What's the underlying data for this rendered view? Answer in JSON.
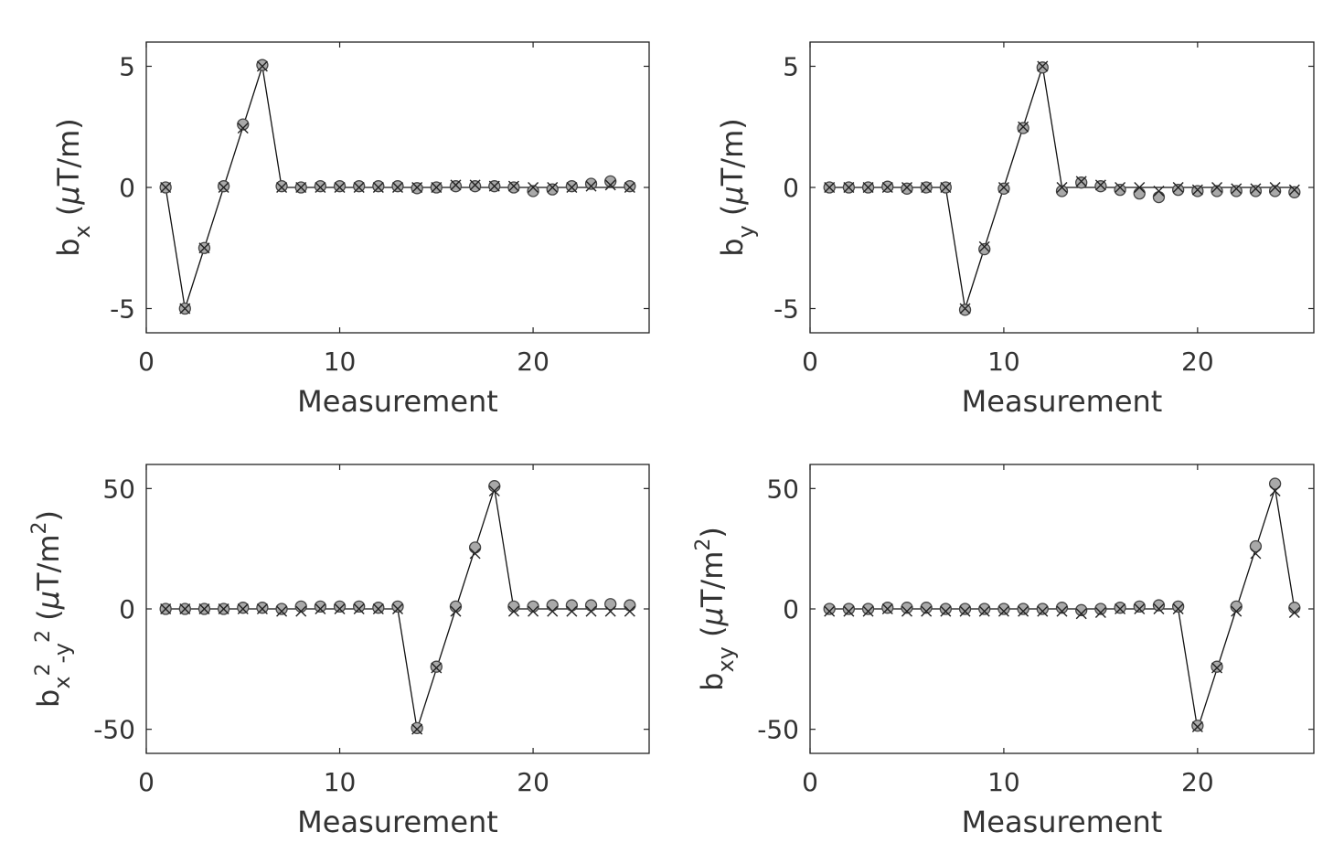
{
  "chart_data": [
    {
      "type": "line",
      "ylabel": "b_x (μT/m)",
      "ylabel_parts": {
        "base": "b",
        "sub": "x",
        "sup": "",
        "sub2": "",
        "sup2": "",
        "unit_pre": "(",
        "mu": "μ",
        "unit_post": "T/m",
        "unit_sup": "",
        "unit_close": ")"
      },
      "xlabel": "Measurement",
      "xlim": [
        0,
        26
      ],
      "ylim": [
        -6,
        6
      ],
      "xticks": [
        0,
        10,
        20
      ],
      "yticks": [
        -5,
        0,
        5
      ],
      "xtick_labels": [
        "0",
        "10",
        "20"
      ],
      "ytick_labels": [
        "-5",
        "0",
        "5"
      ],
      "x": [
        1,
        2,
        3,
        4,
        5,
        6,
        7,
        8,
        9,
        10,
        11,
        12,
        13,
        14,
        15,
        16,
        17,
        18,
        19,
        20,
        21,
        22,
        23,
        24,
        25
      ],
      "series": [
        {
          "marker": "line",
          "values": [
            0,
            -5,
            -2.5,
            0,
            2.5,
            5,
            0,
            0,
            0,
            0,
            0,
            0,
            0,
            0,
            0,
            0,
            0,
            0,
            0,
            0,
            0,
            0,
            0,
            0,
            0
          ]
        },
        {
          "marker": "circle",
          "values": [
            0,
            -5,
            -2.5,
            0.05,
            2.6,
            5.05,
            0.05,
            0,
            0.05,
            0.05,
            0.05,
            0.05,
            0.05,
            -0.03,
            0,
            0.05,
            0.05,
            0.05,
            0,
            -0.15,
            -0.08,
            0.05,
            0.15,
            0.25,
            0.05
          ]
        },
        {
          "marker": "x",
          "values": [
            0,
            -5,
            -2.5,
            0,
            2.45,
            5,
            0,
            0,
            0,
            0,
            0,
            0,
            0,
            0,
            0,
            0.1,
            0.1,
            0.05,
            0.05,
            0,
            0,
            0,
            0.05,
            0.1,
            0
          ]
        }
      ]
    },
    {
      "type": "line",
      "ylabel": "b_y (μT/m)",
      "ylabel_parts": {
        "base": "b",
        "sub": "y",
        "sup": "",
        "sub2": "",
        "sup2": "",
        "unit_pre": "(",
        "mu": "μ",
        "unit_post": "T/m",
        "unit_sup": "",
        "unit_close": ")"
      },
      "xlabel": "Measurement",
      "xlim": [
        0,
        26
      ],
      "ylim": [
        -6,
        6
      ],
      "xticks": [
        0,
        10,
        20
      ],
      "yticks": [
        -5,
        0,
        5
      ],
      "xtick_labels": [
        "0",
        "10",
        "20"
      ],
      "ytick_labels": [
        "-5",
        "0",
        "5"
      ],
      "x": [
        1,
        2,
        3,
        4,
        5,
        6,
        7,
        8,
        9,
        10,
        11,
        12,
        13,
        14,
        15,
        16,
        17,
        18,
        19,
        20,
        21,
        22,
        23,
        24,
        25
      ],
      "series": [
        {
          "marker": "line",
          "values": [
            0,
            0,
            0,
            0,
            0,
            0,
            0,
            -5,
            -2.5,
            0,
            2.5,
            5,
            0,
            0,
            0,
            0,
            0,
            0,
            0,
            0,
            0,
            0,
            0,
            0,
            0
          ]
        },
        {
          "marker": "circle",
          "values": [
            0,
            0,
            0,
            0.03,
            -0.05,
            0,
            0,
            -5.05,
            -2.55,
            -0.05,
            2.45,
            4.95,
            -0.15,
            0.2,
            0.05,
            -0.1,
            -0.25,
            -0.4,
            -0.1,
            -0.15,
            -0.15,
            -0.15,
            -0.15,
            -0.15,
            -0.2
          ]
        },
        {
          "marker": "x",
          "values": [
            0,
            0,
            0,
            0,
            0,
            0,
            0,
            -5,
            -2.45,
            0,
            2.5,
            5,
            0,
            0.25,
            0.1,
            0,
            0,
            -0.15,
            0,
            -0.1,
            0,
            -0.05,
            -0.05,
            0,
            -0.1
          ]
        }
      ]
    },
    {
      "type": "line",
      "ylabel": "b_{x²-y²} (μT/m²)",
      "ylabel_parts": {
        "base": "b",
        "sub": "x",
        "sup": "2",
        "sub2": "-y",
        "sup2": "2",
        "unit_pre": "(",
        "mu": "μ",
        "unit_post": "T/m",
        "unit_sup": "2",
        "unit_close": ")"
      },
      "xlabel": "Measurement",
      "xlim": [
        0,
        26
      ],
      "ylim": [
        -60,
        60
      ],
      "xticks": [
        0,
        10,
        20
      ],
      "yticks": [
        -50,
        0,
        50
      ],
      "xtick_labels": [
        "0",
        "10",
        "20"
      ],
      "ytick_labels": [
        "-50",
        "0",
        "50"
      ],
      "x": [
        1,
        2,
        3,
        4,
        5,
        6,
        7,
        8,
        9,
        10,
        11,
        12,
        13,
        14,
        15,
        16,
        17,
        18,
        19,
        20,
        21,
        22,
        23,
        24,
        25
      ],
      "series": [
        {
          "marker": "line",
          "values": [
            0,
            0,
            0,
            0,
            0,
            0,
            0,
            0,
            0,
            0,
            0,
            0,
            0,
            -50,
            -25,
            0,
            25,
            50,
            0,
            0,
            0,
            0,
            0,
            0,
            0
          ]
        },
        {
          "marker": "circle",
          "values": [
            0,
            0,
            0,
            0,
            0.5,
            0.5,
            0,
            1,
            1,
            1,
            1,
            0.5,
            1,
            -49.5,
            -24,
            1,
            25.5,
            51,
            1,
            1,
            1.5,
            1.5,
            1.5,
            2,
            1.5
          ]
        },
        {
          "marker": "x",
          "values": [
            0,
            0,
            0,
            0,
            0,
            0,
            -1,
            -1,
            0,
            0,
            0,
            0,
            0,
            -50,
            -24.5,
            -1,
            23,
            49,
            -1,
            -1,
            -1,
            -1,
            -1,
            -1,
            -1
          ]
        }
      ]
    },
    {
      "type": "line",
      "ylabel": "b_xy (μT/m²)",
      "ylabel_parts": {
        "base": "b",
        "sub": "xy",
        "sup": "",
        "sub2": "",
        "sup2": "",
        "unit_pre": "(",
        "mu": "μ",
        "unit_post": "T/m",
        "unit_sup": "2",
        "unit_close": ")"
      },
      "xlabel": "Measurement",
      "xlim": [
        0,
        26
      ],
      "ylim": [
        -60,
        60
      ],
      "xticks": [
        0,
        10,
        20
      ],
      "yticks": [
        -50,
        0,
        50
      ],
      "xtick_labels": [
        "0",
        "10",
        "20"
      ],
      "ytick_labels": [
        "-50",
        "0",
        "50"
      ],
      "x": [
        1,
        2,
        3,
        4,
        5,
        6,
        7,
        8,
        9,
        10,
        11,
        12,
        13,
        14,
        15,
        16,
        17,
        18,
        19,
        20,
        21,
        22,
        23,
        24,
        25
      ],
      "series": [
        {
          "marker": "line",
          "values": [
            0,
            0,
            0,
            0,
            0,
            0,
            0,
            0,
            0,
            0,
            0,
            0,
            0,
            0,
            0,
            0,
            0,
            0,
            0,
            -50,
            -25,
            0,
            25,
            50,
            0
          ]
        },
        {
          "marker": "circle",
          "values": [
            0,
            0,
            0,
            0.5,
            0.5,
            0.5,
            0,
            0,
            0,
            0,
            0,
            0,
            0.5,
            -0.5,
            0,
            0.5,
            1,
            1.5,
            1,
            -48.5,
            -24,
            1,
            26,
            52,
            0.5
          ]
        },
        {
          "marker": "x",
          "values": [
            -1,
            -1,
            -1,
            0,
            -1,
            -1,
            -1,
            -1,
            -1,
            -1,
            -1,
            -1,
            -1,
            -2,
            -1.5,
            0,
            0,
            0,
            0,
            -49,
            -24.5,
            -1,
            23,
            49,
            -1.5
          ]
        }
      ]
    }
  ]
}
